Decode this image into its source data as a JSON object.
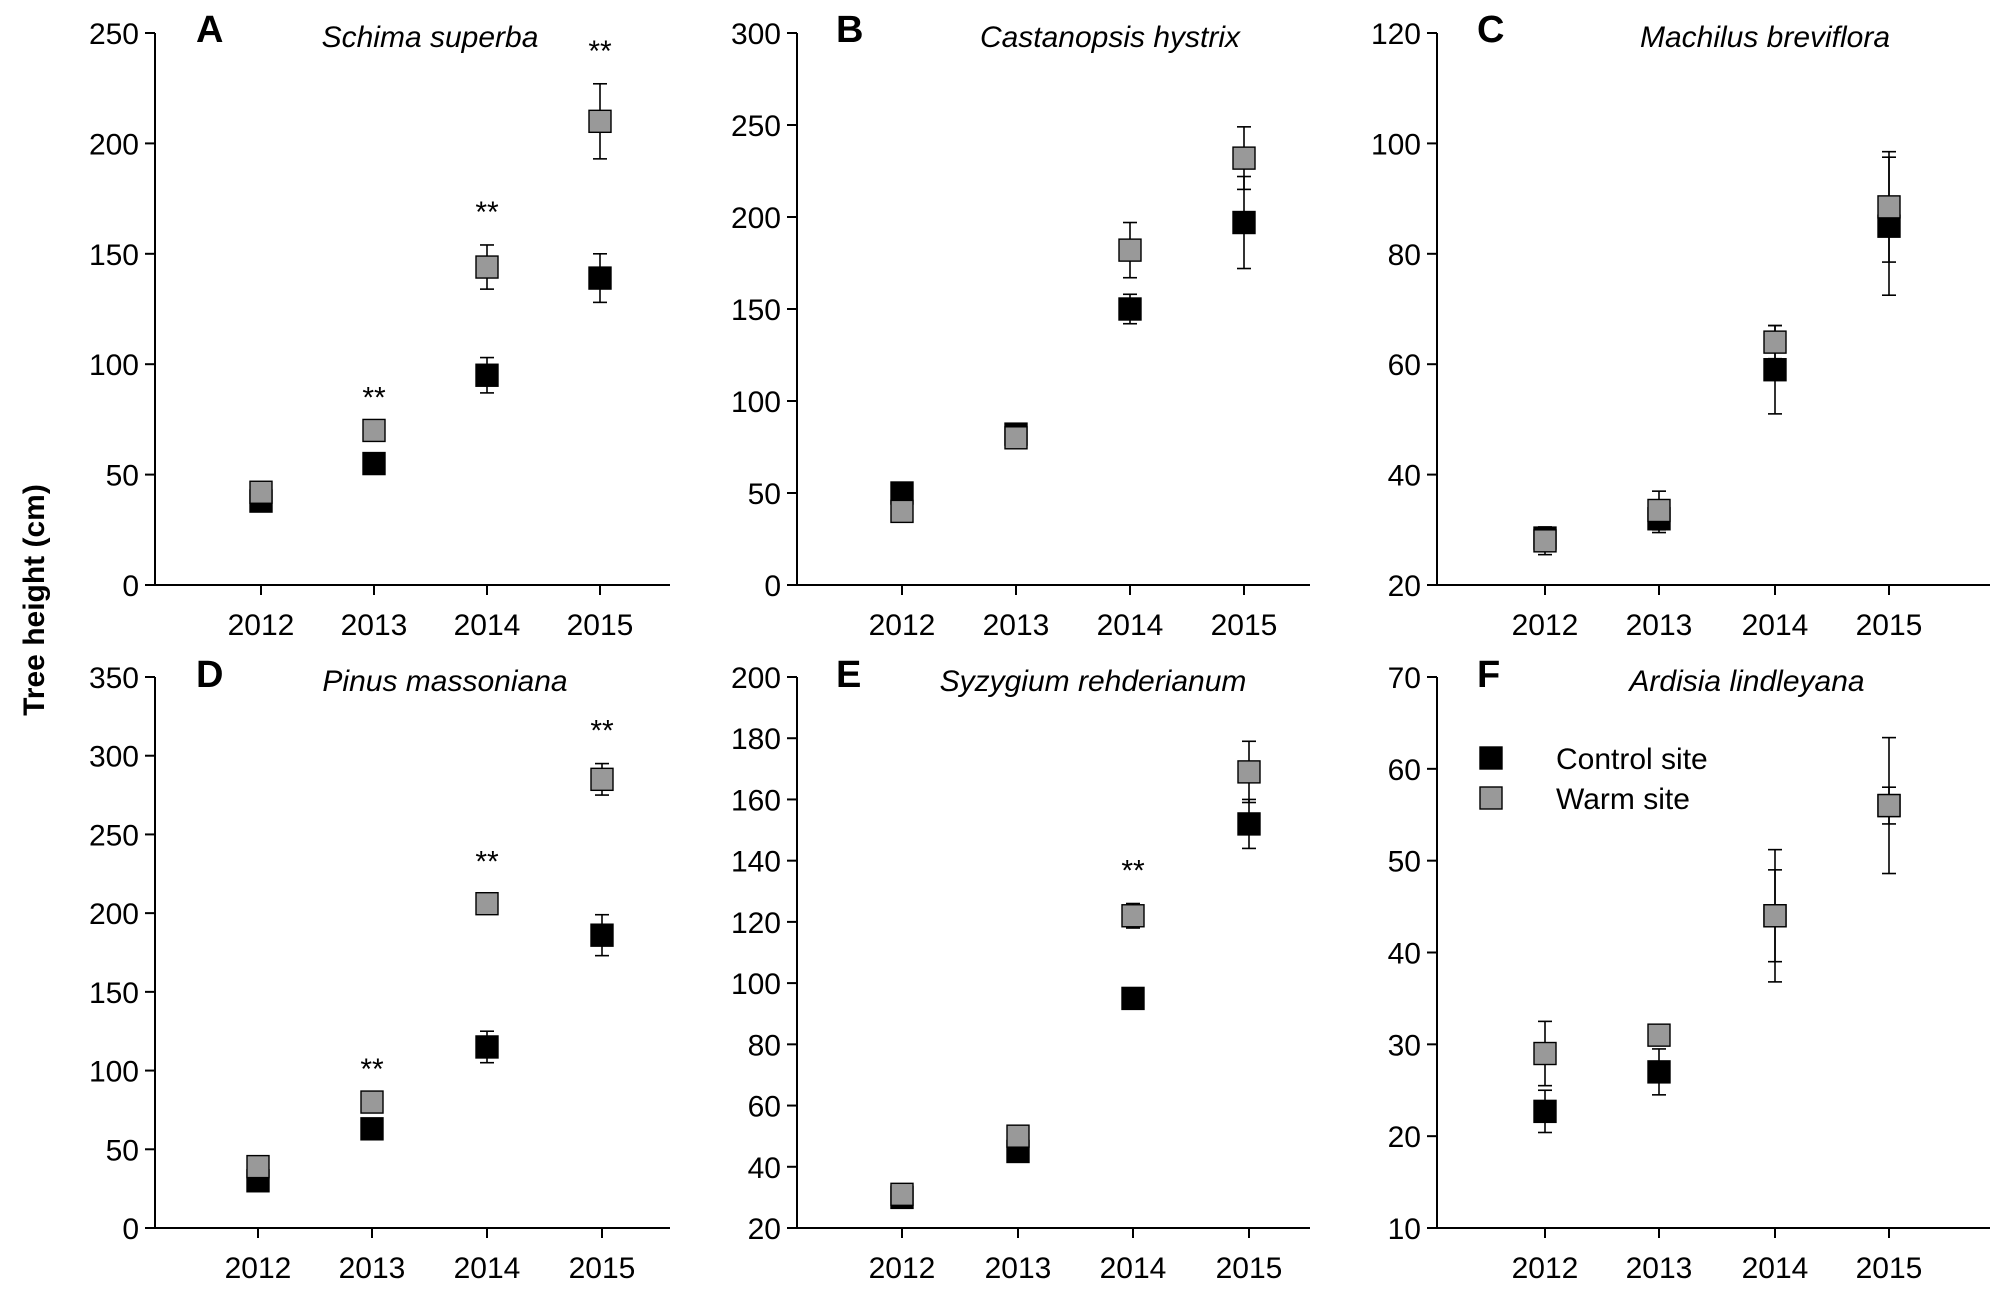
{
  "y_axis_title": "Tree height (cm)",
  "colors": {
    "control": "#000000",
    "warm": "#999999",
    "axis": "#000000"
  },
  "legend": [
    {
      "label": "Control site",
      "color": "#000000"
    },
    {
      "label": "Warm site",
      "color": "#999999"
    }
  ],
  "chart_data": [
    {
      "type": "scatter",
      "panel": "A",
      "title": "Schima superba",
      "categories": [
        "2012",
        "2013",
        "2014",
        "2015"
      ],
      "ylim": [
        0,
        250
      ],
      "yticks": [
        0,
        50,
        100,
        150,
        200,
        250
      ],
      "series": [
        {
          "name": "Control site",
          "values": [
            38,
            55,
            95,
            139
          ],
          "errors": [
            null,
            null,
            8,
            11
          ]
        },
        {
          "name": "Warm site",
          "values": [
            42,
            70,
            144,
            210
          ],
          "errors": [
            null,
            null,
            10,
            17
          ]
        }
      ],
      "significance": [
        "",
        "**",
        "**",
        "**"
      ]
    },
    {
      "type": "scatter",
      "panel": "B",
      "title": "Castanopsis hystrix",
      "categories": [
        "2012",
        "2013",
        "2014",
        "2015"
      ],
      "ylim": [
        0,
        300
      ],
      "yticks": [
        0,
        50,
        100,
        150,
        200,
        250,
        300
      ],
      "series": [
        {
          "name": "Control site",
          "values": [
            50,
            82,
            150,
            197
          ],
          "errors": [
            null,
            null,
            8,
            25
          ]
        },
        {
          "name": "Warm site",
          "values": [
            40,
            80,
            182,
            232
          ],
          "errors": [
            null,
            null,
            15,
            17
          ]
        }
      ],
      "significance": [
        "",
        "",
        "",
        ""
      ]
    },
    {
      "type": "scatter",
      "panel": "C",
      "title": "Machilus breviflora",
      "categories": [
        "2012",
        "2013",
        "2014",
        "2015"
      ],
      "ylim": [
        20,
        120
      ],
      "yticks": [
        20,
        40,
        60,
        80,
        100,
        120
      ],
      "series": [
        {
          "name": "Control site",
          "values": [
            28.5,
            32,
            59,
            85
          ],
          "errors": [
            2,
            2.5,
            8,
            12.5
          ]
        },
        {
          "name": "Warm site",
          "values": [
            28,
            33.5,
            64,
            88.5
          ],
          "errors": [
            2.5,
            3.5,
            3,
            10
          ]
        }
      ],
      "significance": [
        "",
        "",
        "",
        ""
      ]
    },
    {
      "type": "scatter",
      "panel": "D",
      "title": "Pinus massoniana",
      "categories": [
        "2012",
        "2013",
        "2014",
        "2015"
      ],
      "ylim": [
        0,
        350
      ],
      "yticks": [
        0,
        50,
        100,
        150,
        200,
        250,
        300,
        350
      ],
      "series": [
        {
          "name": "Control site",
          "values": [
            30,
            63,
            115,
            186
          ],
          "errors": [
            null,
            null,
            10,
            13
          ]
        },
        {
          "name": "Warm site",
          "values": [
            39,
            80,
            206,
            285
          ],
          "errors": [
            null,
            null,
            6,
            10
          ]
        }
      ],
      "significance": [
        "",
        "**",
        "**",
        "**"
      ]
    },
    {
      "type": "scatter",
      "panel": "E",
      "title": "Syzygium rehderianum",
      "categories": [
        "2012",
        "2013",
        "2014",
        "2015"
      ],
      "ylim": [
        20,
        200
      ],
      "yticks": [
        20,
        40,
        60,
        80,
        100,
        120,
        140,
        160,
        180,
        200
      ],
      "series": [
        {
          "name": "Control site",
          "values": [
            30,
            45,
            95,
            152
          ],
          "errors": [
            null,
            null,
            null,
            8
          ]
        },
        {
          "name": "Warm site",
          "values": [
            31,
            50,
            122,
            169
          ],
          "errors": [
            null,
            null,
            4,
            10
          ]
        }
      ],
      "significance": [
        "",
        "",
        "**",
        ""
      ]
    },
    {
      "type": "scatter",
      "panel": "F",
      "title": "Ardisia lindleyana",
      "categories": [
        "2012",
        "2013",
        "2014",
        "2015"
      ],
      "ylim": [
        10,
        70
      ],
      "yticks": [
        10,
        20,
        30,
        40,
        50,
        60,
        70
      ],
      "series": [
        {
          "name": "Control site",
          "values": [
            22.7,
            27,
            44,
            56
          ],
          "errors": [
            2.3,
            2.5,
            5,
            2
          ]
        },
        {
          "name": "Warm site",
          "values": [
            29,
            31,
            44,
            56
          ],
          "errors": [
            3.5,
            null,
            7.2,
            7.4
          ]
        }
      ],
      "significance": [
        "",
        "",
        "",
        ""
      ]
    }
  ]
}
